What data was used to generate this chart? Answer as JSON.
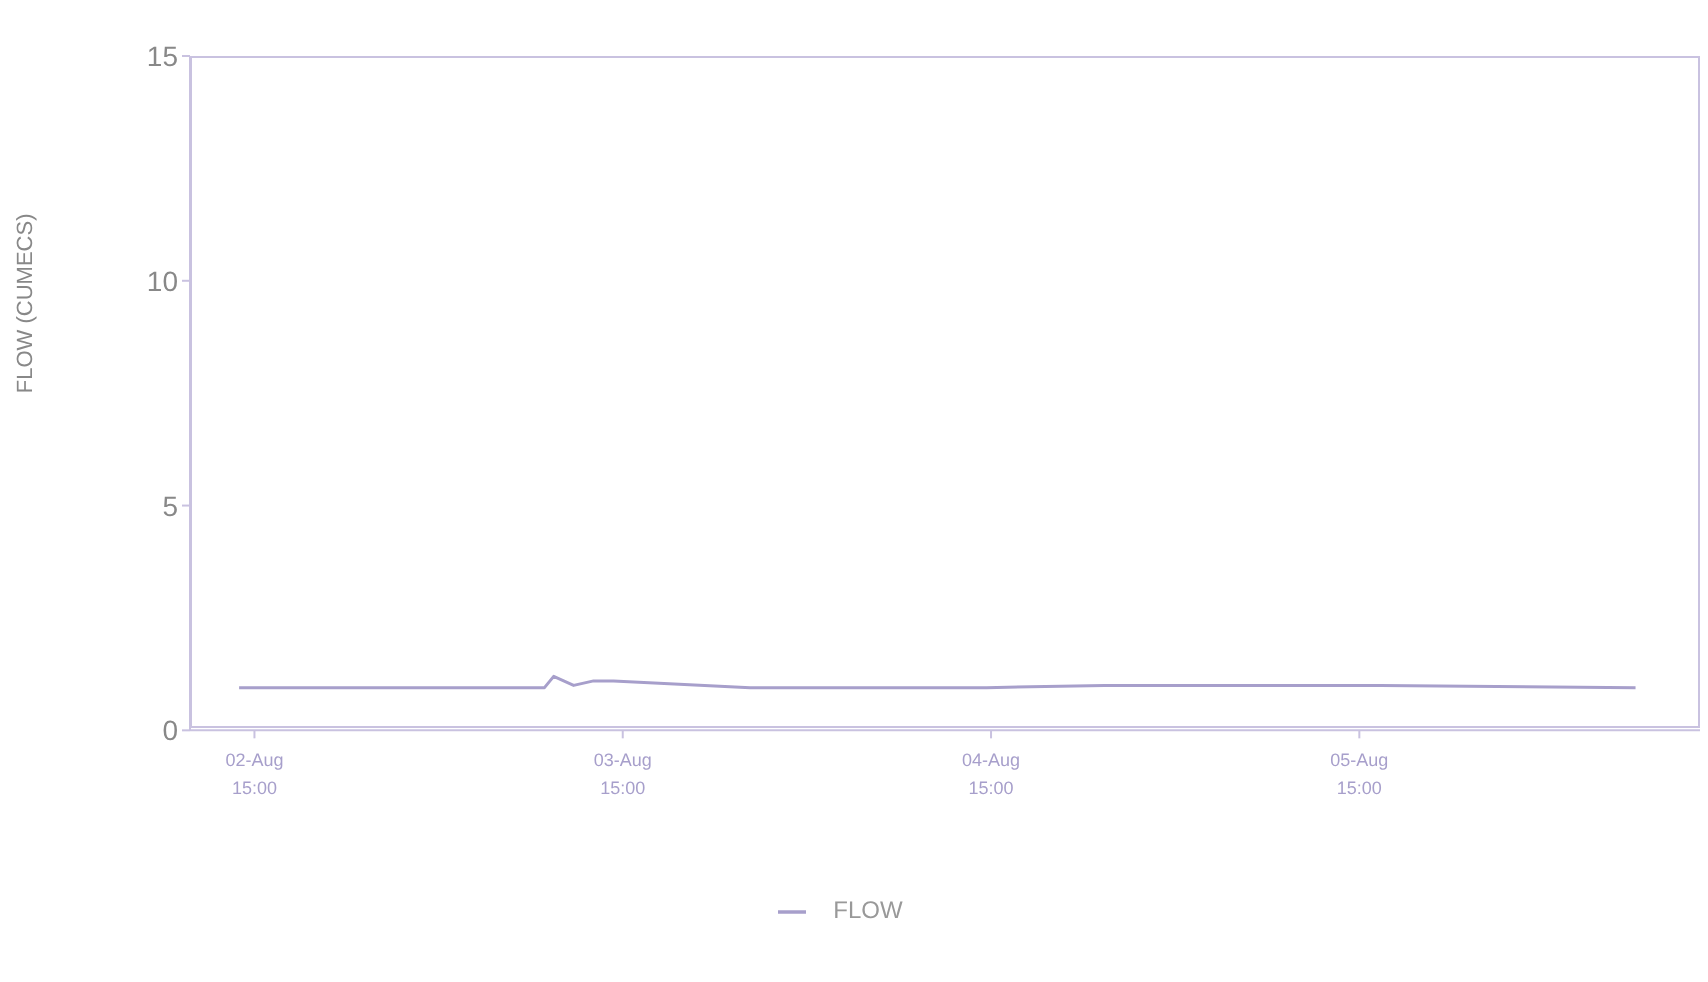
{
  "chart_data": {
    "type": "line",
    "ylabel": "FLOW (CUMECS)",
    "x": [
      "--08-02T14:00",
      "--08-03T09:54",
      "--08-03T10:30",
      "--08-03T11:48",
      "--08-03T13:06",
      "--08-03T14:24",
      "--08-03T23:18",
      "--08-04T14:42",
      "--08-04T22:24",
      "--08-05T16:24",
      "--08-06T09:00"
    ],
    "series": [
      {
        "name": "FLOW",
        "color": "#a79fcb",
        "values": [
          0.95,
          0.95,
          1.2,
          1.0,
          1.1,
          1.1,
          0.95,
          0.95,
          1.0,
          1.0,
          0.95
        ]
      }
    ],
    "xlim": [
      "--08-02T10:48",
      "--08-06T13:12"
    ],
    "xticks": [
      {
        "value": "--08-02T15:00",
        "label": "02-Aug\n15:00"
      },
      {
        "value": "--08-03T15:00",
        "label": "03-Aug\n15:00"
      },
      {
        "value": "--08-04T15:00",
        "label": "04-Aug\n15:00"
      },
      {
        "value": "--08-05T15:00",
        "label": "05-Aug\n15:00"
      }
    ],
    "ylim": [
      0,
      15
    ],
    "yticks": [
      0,
      5,
      10,
      15
    ],
    "grid": false,
    "legend": "bottom",
    "marker": "none",
    "line_style": "solid"
  }
}
